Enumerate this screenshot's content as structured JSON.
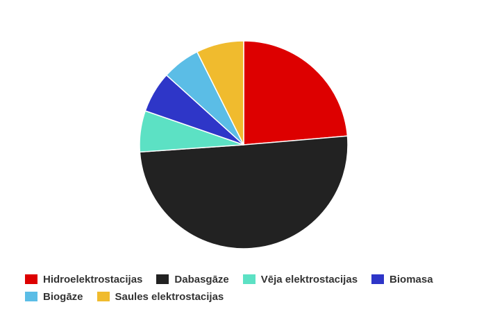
{
  "chart_data": {
    "type": "pie",
    "series": [
      {
        "name": "Hidroelektrostacijas",
        "value": 24.0,
        "color": "#dd0000"
      },
      {
        "name": "Dabasgāze",
        "value": 51.0,
        "color": "#222222"
      },
      {
        "name": "Vēja elektrostacijas",
        "value": 6.5,
        "color": "#5ce1c4"
      },
      {
        "name": "Biomasa",
        "value": 6.5,
        "color": "#2e36c8"
      },
      {
        "name": "Biogāze",
        "value": 6.0,
        "color": "#5bbde6"
      },
      {
        "name": "Saules elektrostacijas",
        "value": 7.5,
        "color": "#f0bb2e"
      }
    ],
    "start_angle_deg": 0,
    "direction": "clockwise",
    "legend_position": "bottom"
  }
}
